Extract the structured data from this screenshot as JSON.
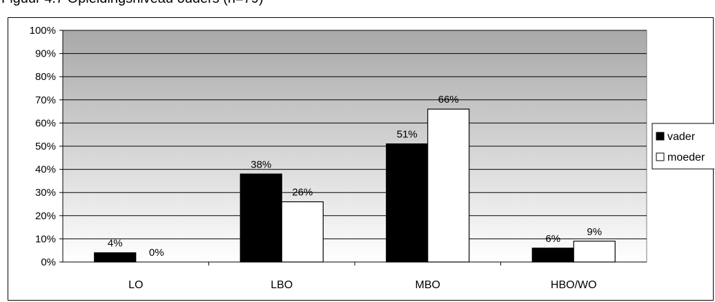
{
  "caption": "Figuur 4.7 Opleidingsniveau ouders (n=79)",
  "chart_data": {
    "type": "bar",
    "categories": [
      "LO",
      "LBO",
      "MBO",
      "HBO/WO"
    ],
    "series": [
      {
        "name": "vader",
        "values": [
          4,
          38,
          51,
          6
        ],
        "labels": [
          "4%",
          "38%",
          "51%",
          "6%"
        ],
        "color": "#000000"
      },
      {
        "name": "moeder",
        "values": [
          0,
          26,
          66,
          9
        ],
        "labels": [
          "0%",
          "26%",
          "66%",
          "9%"
        ],
        "color": "#ffffff"
      }
    ],
    "ylim": [
      0,
      100
    ],
    "yticks": [
      "0%",
      "10%",
      "20%",
      "30%",
      "40%",
      "50%",
      "60%",
      "70%",
      "80%",
      "90%",
      "100%"
    ],
    "grid": true,
    "legend_position": "right",
    "plot_background": [
      "#a8a8a8",
      "#ffffff"
    ]
  }
}
